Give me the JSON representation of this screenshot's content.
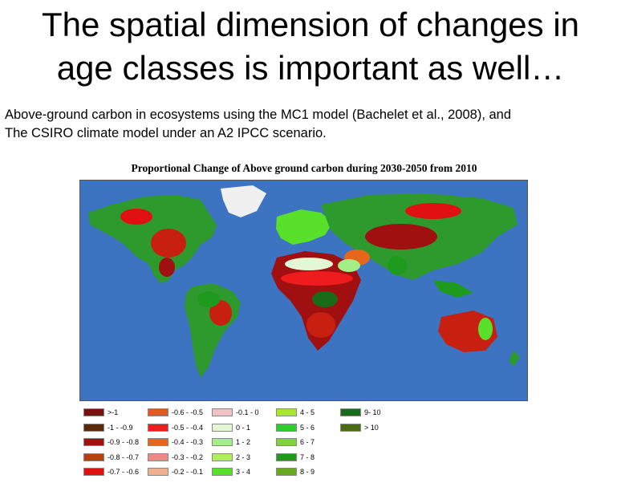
{
  "slide": {
    "title_line1": "The spatial dimension of changes in",
    "title_line2": "age classes is important  as well…",
    "subtitle_line1": "Above-ground carbon in ecosystems using the MC1 model (Bachelet et al., 2008), and",
    "subtitle_line2": "The CSIRO climate model under an A2 IPCC scenario."
  },
  "map": {
    "title": "Proportional Change of Above ground carbon during 2030-2050 from 2010",
    "ocean_color": "#3d74c2",
    "legend": [
      {
        "label": ">-1",
        "color": "#7a1010"
      },
      {
        "label": "-1 - -0.9",
        "color": "#5a2a0a"
      },
      {
        "label": "-0.9 - -0.8",
        "color": "#a01010"
      },
      {
        "label": "-0.8 - -0.7",
        "color": "#b84010"
      },
      {
        "label": "-0.7 - -0.6",
        "color": "#e01010"
      },
      {
        "label": "-0.6 - -0.5",
        "color": "#e05a20"
      },
      {
        "label": "-0.5 - -0.4",
        "color": "#ee1c1c"
      },
      {
        "label": "-0.4 - -0.3",
        "color": "#e8651c"
      },
      {
        "label": "-0.3 - -0.2",
        "color": "#f08888"
      },
      {
        "label": "-0.2 - -0.1",
        "color": "#f0b090"
      },
      {
        "label": "-0.1 - 0",
        "color": "#f2c2c2"
      },
      {
        "label": "0 - 1",
        "color": "#e4f7d4"
      },
      {
        "label": "1 - 2",
        "color": "#a4ee88"
      },
      {
        "label": "2 - 3",
        "color": "#aef05a"
      },
      {
        "label": "3 - 4",
        "color": "#58e02a"
      },
      {
        "label": "4 - 5",
        "color": "#a8e830"
      },
      {
        "label": "5 - 6",
        "color": "#2ecc2e"
      },
      {
        "label": "6 - 7",
        "color": "#7fd23a"
      },
      {
        "label": "7 - 8",
        "color": "#1e9a1e"
      },
      {
        "label": "8 - 9",
        "color": "#6aa820"
      },
      {
        "label": "9- 10",
        "color": "#1a6a1a"
      },
      {
        "label": "> 10",
        "color": "#4a6a14"
      }
    ]
  }
}
